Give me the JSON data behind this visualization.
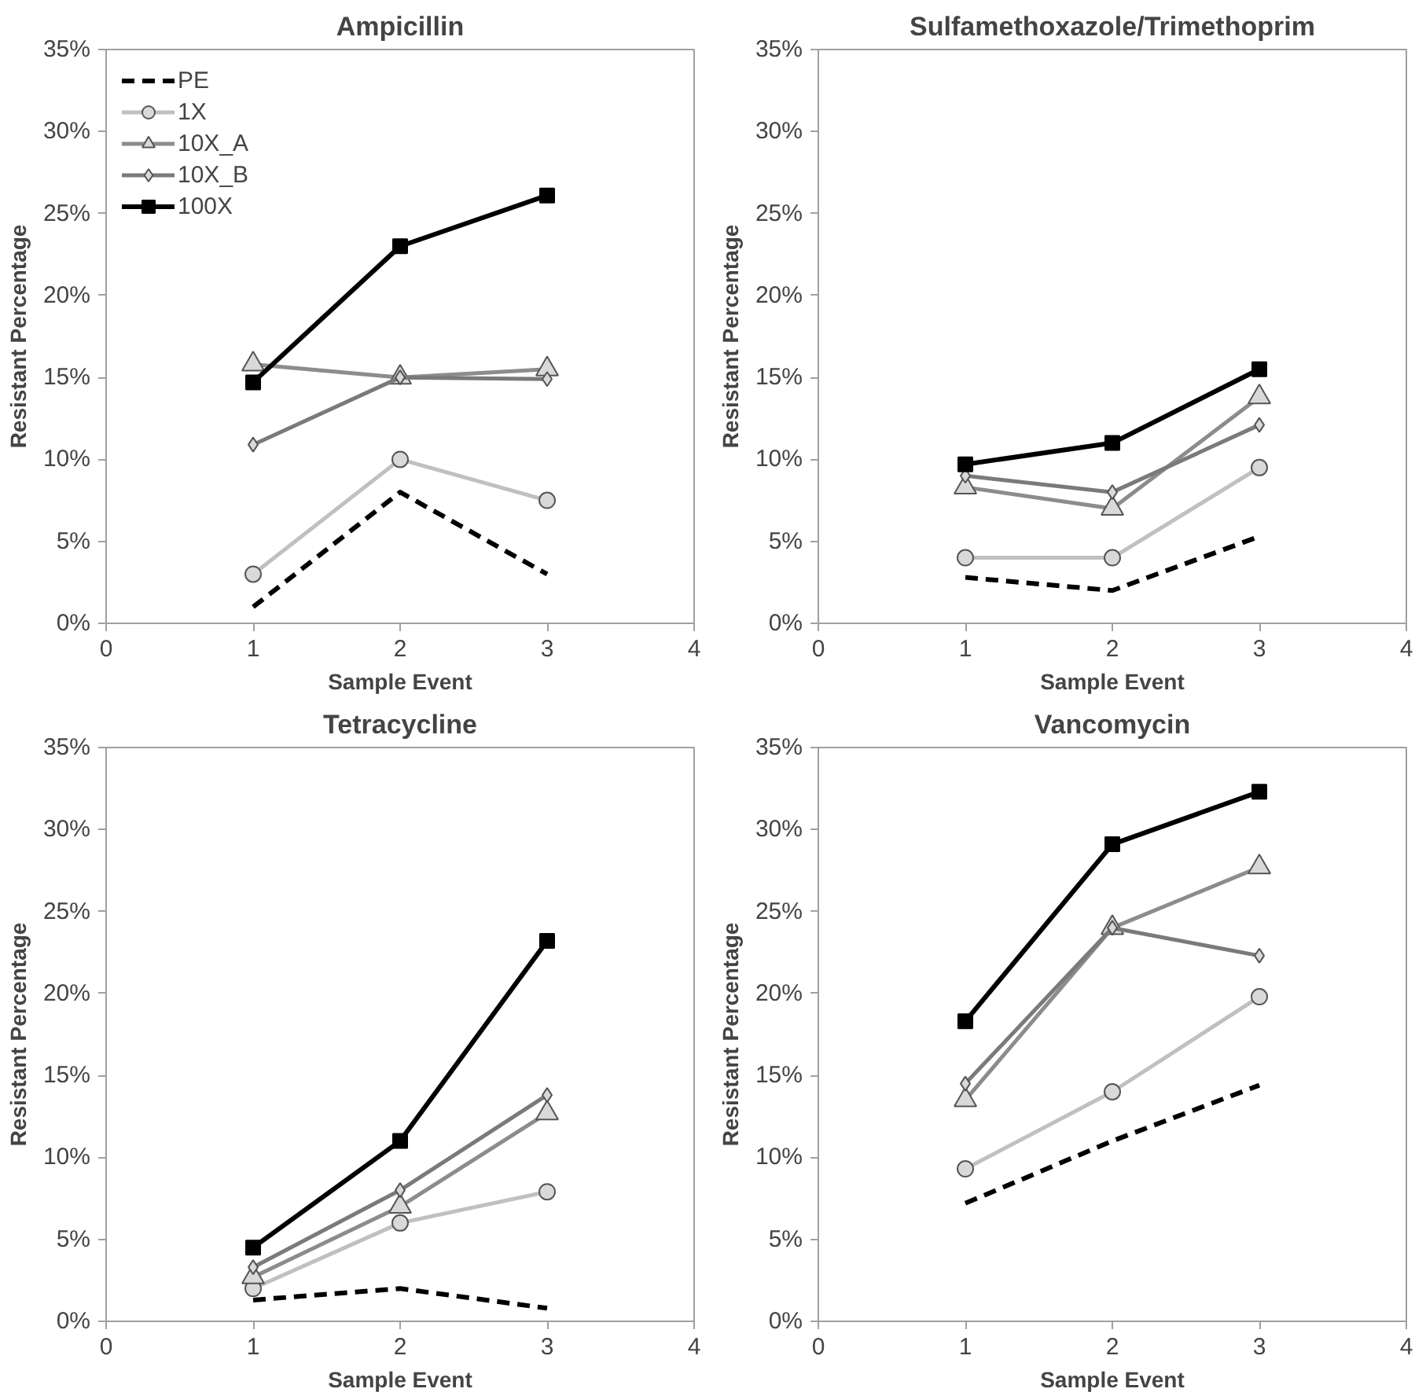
{
  "chart_data": [
    {
      "type": "line",
      "title": "Ampicillin",
      "xlabel": "Sample Event",
      "ylabel": "Resistant Percentage",
      "x": [
        1,
        2,
        3
      ],
      "xlim": [
        0,
        4
      ],
      "xticks": [
        0,
        1,
        2,
        3,
        4
      ],
      "ylim": [
        0,
        35
      ],
      "yticks": [
        {
          "value": 0,
          "label": "0%"
        },
        {
          "value": 5,
          "label": "5%"
        },
        {
          "value": 10,
          "label": "10%"
        },
        {
          "value": 15,
          "label": "15%"
        },
        {
          "value": 20,
          "label": "20%"
        },
        {
          "value": 25,
          "label": "25%"
        },
        {
          "value": 30,
          "label": "30%"
        },
        {
          "value": 35,
          "label": "35%"
        }
      ],
      "grid": false,
      "legend": "top left",
      "series": [
        {
          "name": "PE",
          "color": "#000000",
          "values": [
            1,
            8,
            3
          ],
          "marker": "none",
          "line_style": "dashed"
        },
        {
          "name": "1X",
          "color": "#c0c0c0",
          "values": [
            3,
            10,
            7.5
          ],
          "marker": "circle",
          "line_style": "solid"
        },
        {
          "name": "10X_A",
          "color": "#8c8c8c",
          "values": [
            15.8,
            15,
            15.5
          ],
          "marker": "triangle",
          "line_style": "solid"
        },
        {
          "name": "10X_B",
          "color": "#7a7a7a",
          "values": [
            10.9,
            15,
            14.9
          ],
          "marker": "diamond",
          "line_style": "solid"
        },
        {
          "name": "100X",
          "color": "#000000",
          "values": [
            14.7,
            23,
            26.1
          ],
          "marker": "square",
          "line_style": "solid"
        }
      ]
    },
    {
      "type": "line",
      "title": "Sulfamethoxazole/Trimethoprim",
      "xlabel": "Sample Event",
      "ylabel": "Resistant Percentage",
      "x": [
        1,
        2,
        3
      ],
      "xlim": [
        0,
        4
      ],
      "xticks": [
        0,
        1,
        2,
        3,
        4
      ],
      "ylim": [
        0,
        35
      ],
      "yticks": [
        {
          "value": 0,
          "label": "0%"
        },
        {
          "value": 5,
          "label": "5%"
        },
        {
          "value": 10,
          "label": "10%"
        },
        {
          "value": 15,
          "label": "15%"
        },
        {
          "value": 20,
          "label": "20%"
        },
        {
          "value": 25,
          "label": "25%"
        },
        {
          "value": 30,
          "label": "30%"
        },
        {
          "value": 35,
          "label": "35%"
        }
      ],
      "grid": false,
      "series": [
        {
          "color": "#000000",
          "values": [
            2.8,
            2,
            5.3
          ],
          "marker": "none",
          "line_style": "dashed"
        },
        {
          "color": "#c0c0c0",
          "values": [
            4,
            4,
            9.5
          ],
          "marker": "circle",
          "line_style": "solid"
        },
        {
          "color": "#8c8c8c",
          "values": [
            8.3,
            7,
            13.8
          ],
          "marker": "triangle",
          "line_style": "solid"
        },
        {
          "color": "#7a7a7a",
          "values": [
            9,
            8,
            12.1
          ],
          "marker": "diamond",
          "line_style": "solid"
        },
        {
          "color": "#000000",
          "values": [
            9.7,
            11,
            15.5
          ],
          "marker": "square",
          "line_style": "solid"
        }
      ]
    },
    {
      "type": "line",
      "title": "Tetracycline",
      "xlabel": "Sample Event",
      "ylabel": "Resistant Percentage",
      "x": [
        1,
        2,
        3
      ],
      "xlim": [
        0,
        4
      ],
      "xticks": [
        0,
        1,
        2,
        3,
        4
      ],
      "ylim": [
        0,
        35
      ],
      "yticks": [
        {
          "value": 0,
          "label": "0%"
        },
        {
          "value": 5,
          "label": "5%"
        },
        {
          "value": 10,
          "label": "10%"
        },
        {
          "value": 15,
          "label": "15%"
        },
        {
          "value": 20,
          "label": "20%"
        },
        {
          "value": 25,
          "label": "25%"
        },
        {
          "value": 30,
          "label": "30%"
        },
        {
          "value": 35,
          "label": "35%"
        }
      ],
      "grid": false,
      "series": [
        {
          "color": "#000000",
          "values": [
            1.3,
            2,
            0.8
          ],
          "marker": "none",
          "line_style": "dashed"
        },
        {
          "color": "#c0c0c0",
          "values": [
            2,
            6,
            7.9
          ],
          "marker": "circle",
          "line_style": "solid"
        },
        {
          "color": "#8c8c8c",
          "values": [
            2.7,
            7,
            12.7
          ],
          "marker": "triangle",
          "line_style": "solid"
        },
        {
          "color": "#7a7a7a",
          "values": [
            3.3,
            8,
            13.8
          ],
          "marker": "diamond",
          "line_style": "solid"
        },
        {
          "color": "#000000",
          "values": [
            4.5,
            11,
            23.2
          ],
          "marker": "square",
          "line_style": "solid"
        }
      ]
    },
    {
      "type": "line",
      "title": "Vancomycin",
      "xlabel": "Sample Event",
      "ylabel": "Resistant Percentage",
      "x": [
        1,
        2,
        3
      ],
      "xlim": [
        0,
        4
      ],
      "xticks": [
        0,
        1,
        2,
        3,
        4
      ],
      "ylim": [
        0,
        35
      ],
      "yticks": [
        {
          "value": 0,
          "label": "0%"
        },
        {
          "value": 5,
          "label": "5%"
        },
        {
          "value": 10,
          "label": "10%"
        },
        {
          "value": 15,
          "label": "15%"
        },
        {
          "value": 20,
          "label": "20%"
        },
        {
          "value": 25,
          "label": "25%"
        },
        {
          "value": 30,
          "label": "30%"
        },
        {
          "value": 35,
          "label": "35%"
        }
      ],
      "grid": false,
      "series": [
        {
          "color": "#000000",
          "values": [
            7.2,
            11,
            14.4
          ],
          "marker": "none",
          "line_style": "dashed"
        },
        {
          "color": "#c0c0c0",
          "values": [
            9.3,
            14,
            19.8
          ],
          "marker": "circle",
          "line_style": "solid"
        },
        {
          "color": "#8c8c8c",
          "values": [
            13.5,
            24,
            27.7
          ],
          "marker": "triangle",
          "line_style": "solid"
        },
        {
          "color": "#7a7a7a",
          "values": [
            14.5,
            24,
            22.3
          ],
          "marker": "diamond",
          "line_style": "solid"
        },
        {
          "color": "#000000",
          "values": [
            18.3,
            29.1,
            32.3
          ],
          "marker": "square",
          "line_style": "solid"
        }
      ]
    }
  ]
}
